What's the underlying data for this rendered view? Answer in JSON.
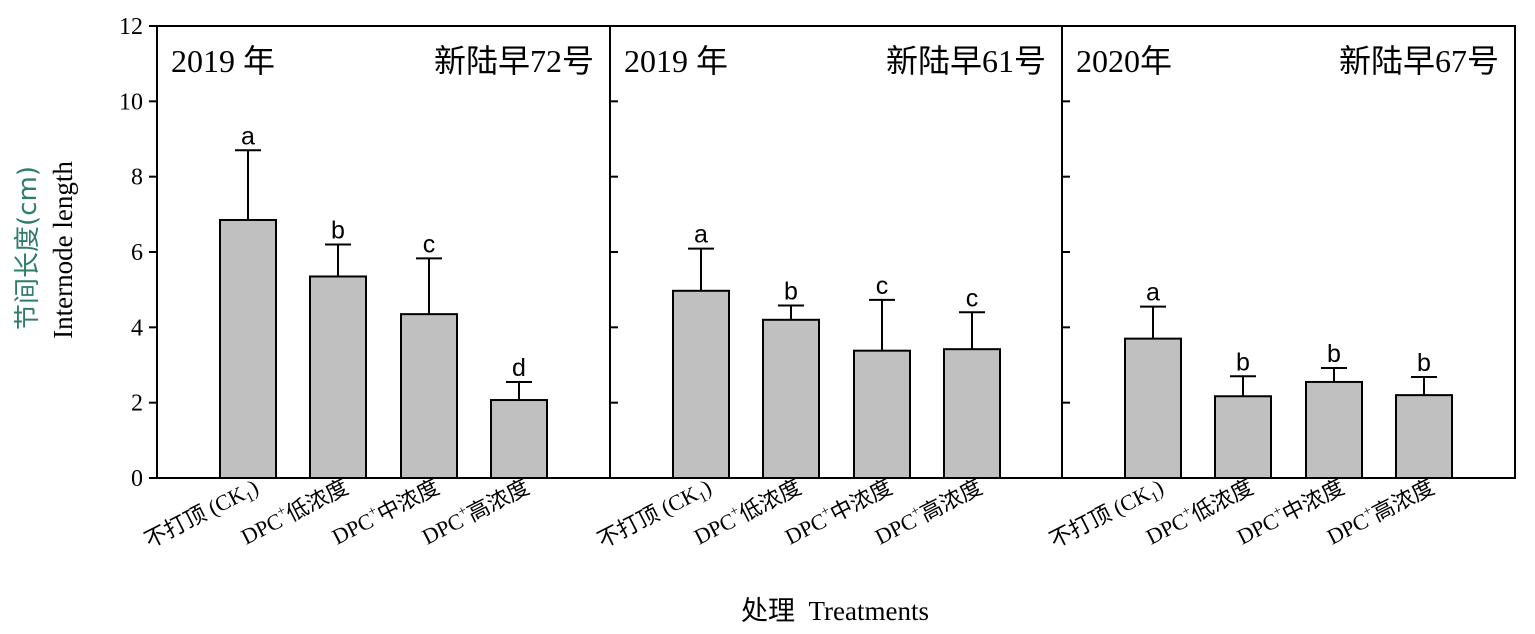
{
  "chart_data": {
    "type": "bar",
    "ylabel_cn": "节间长度(cm)",
    "ylabel_en": "Internode length",
    "xlabel": "处理  Treatments",
    "ylim": [
      0,
      12
    ],
    "yticks": [
      "0",
      "2",
      "4",
      "6",
      "8",
      "10",
      "12"
    ],
    "colors": {
      "bar": "#c0c0c0",
      "bar_edge": "#000000",
      "ylabel_cn": "#2e7d6b"
    },
    "categories": [
      {
        "main": "不打顶 (CK",
        "sub": "1",
        "tail": ")"
      },
      {
        "main": "DPC",
        "sup": "+",
        "tail": "低浓度"
      },
      {
        "main": "DPC",
        "sup": "+",
        "tail": "中浓度"
      },
      {
        "main": "DPC",
        "sup": "+",
        "tail": "高浓度"
      }
    ],
    "panels": [
      {
        "year": "2019 年",
        "variety": "新陆早72号",
        "values": [
          6.85,
          5.35,
          4.35,
          2.07
        ],
        "errors": [
          1.85,
          0.85,
          1.48,
          0.48
        ],
        "letters": [
          "a",
          "b",
          "c",
          "d"
        ]
      },
      {
        "year": "2019 年",
        "variety": "新陆早61号",
        "values": [
          4.97,
          4.2,
          3.38,
          3.42
        ],
        "errors": [
          1.12,
          0.38,
          1.35,
          0.98
        ],
        "letters": [
          "a",
          "b",
          "c",
          "c"
        ]
      },
      {
        "year": "2020年",
        "variety": "新陆早67号",
        "values": [
          3.7,
          2.17,
          2.55,
          2.2
        ],
        "errors": [
          0.85,
          0.53,
          0.37,
          0.48
        ],
        "letters": [
          "a",
          "b",
          "b",
          "b"
        ]
      }
    ]
  }
}
